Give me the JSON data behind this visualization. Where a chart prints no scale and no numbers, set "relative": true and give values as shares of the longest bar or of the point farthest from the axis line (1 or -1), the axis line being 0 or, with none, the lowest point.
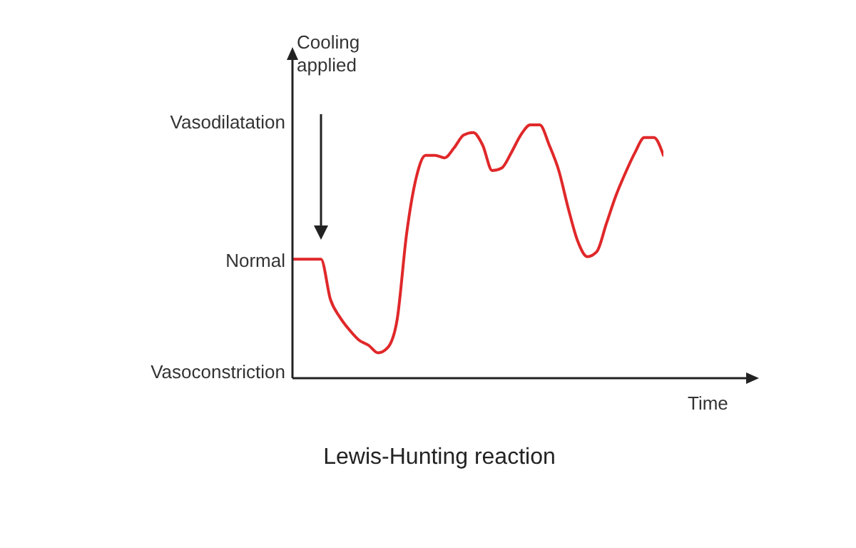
{
  "chart_data": {
    "type": "line",
    "title": "Lewis-Hunting reaction",
    "xlabel": "Time",
    "relative": true,
    "annotations": [
      "Cooling applied",
      "Vasoconstriction",
      "Normal",
      "Vasodilatation"
    ],
    "categories": [
      null,
      null,
      null,
      null,
      null,
      null,
      null,
      null,
      null,
      null,
      null,
      null,
      null,
      null,
      null,
      null,
      null,
      null,
      null,
      null,
      null,
      null,
      null,
      null,
      null,
      null,
      null,
      null,
      null,
      null,
      null,
      null,
      null,
      null,
      null,
      null,
      null,
      null,
      null,
      null
    ],
    "series": [
      {
        "color": "#e0282a",
        "values": [
          0.47,
          0.47,
          0.47,
          0.47,
          0.31,
          0.24,
          0.19,
          0.15,
          0.13,
          0.1,
          0.12,
          0.23,
          0.57,
          0.79,
          0.88,
          0.88,
          0.87,
          0.91,
          0.96,
          0.97,
          0.92,
          0.82,
          0.83,
          0.89,
          0.96,
          1.0,
          1.0,
          0.92,
          0.82,
          0.67,
          0.54,
          0.48,
          0.5,
          0.61,
          0.72,
          0.81,
          0.89,
          0.95,
          0.95,
          0.88
        ]
      }
    ],
    "grid": false,
    "legend": false,
    "marker": "none",
    "line_style": "solid"
  }
}
